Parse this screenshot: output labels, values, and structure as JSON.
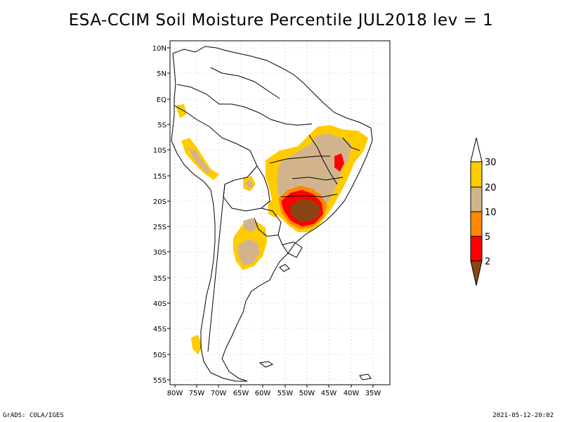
{
  "title": "ESA-CCIM Soil Moisture Percentile JUL2018 lev = 1",
  "footer": {
    "left": "GrADS: COLA/IGES",
    "right": "2021-05-12-20:02"
  },
  "map": {
    "lat_labels": [
      "10N",
      "5N",
      "EQ",
      "5S",
      "10S",
      "15S",
      "20S",
      "25S",
      "30S",
      "35S",
      "40S",
      "45S",
      "50S",
      "55S"
    ],
    "lon_labels": [
      "80W",
      "75W",
      "70W",
      "65W",
      "60W",
      "55W",
      "50W",
      "45W",
      "40W",
      "35W"
    ],
    "lat_range": [
      10.5,
      -56.5
    ],
    "lon_range": [
      -81,
      -36
    ]
  },
  "legend": {
    "labels": [
      "30",
      "20",
      "10",
      "5",
      "2"
    ],
    "colors": {
      "above30": "#ffffff",
      "20-30": "#ffcc00",
      "10-20": "#d2b48c",
      "5-10": "#ff8800",
      "2-5": "#ff0000",
      "below2": "#8b4513"
    }
  }
}
